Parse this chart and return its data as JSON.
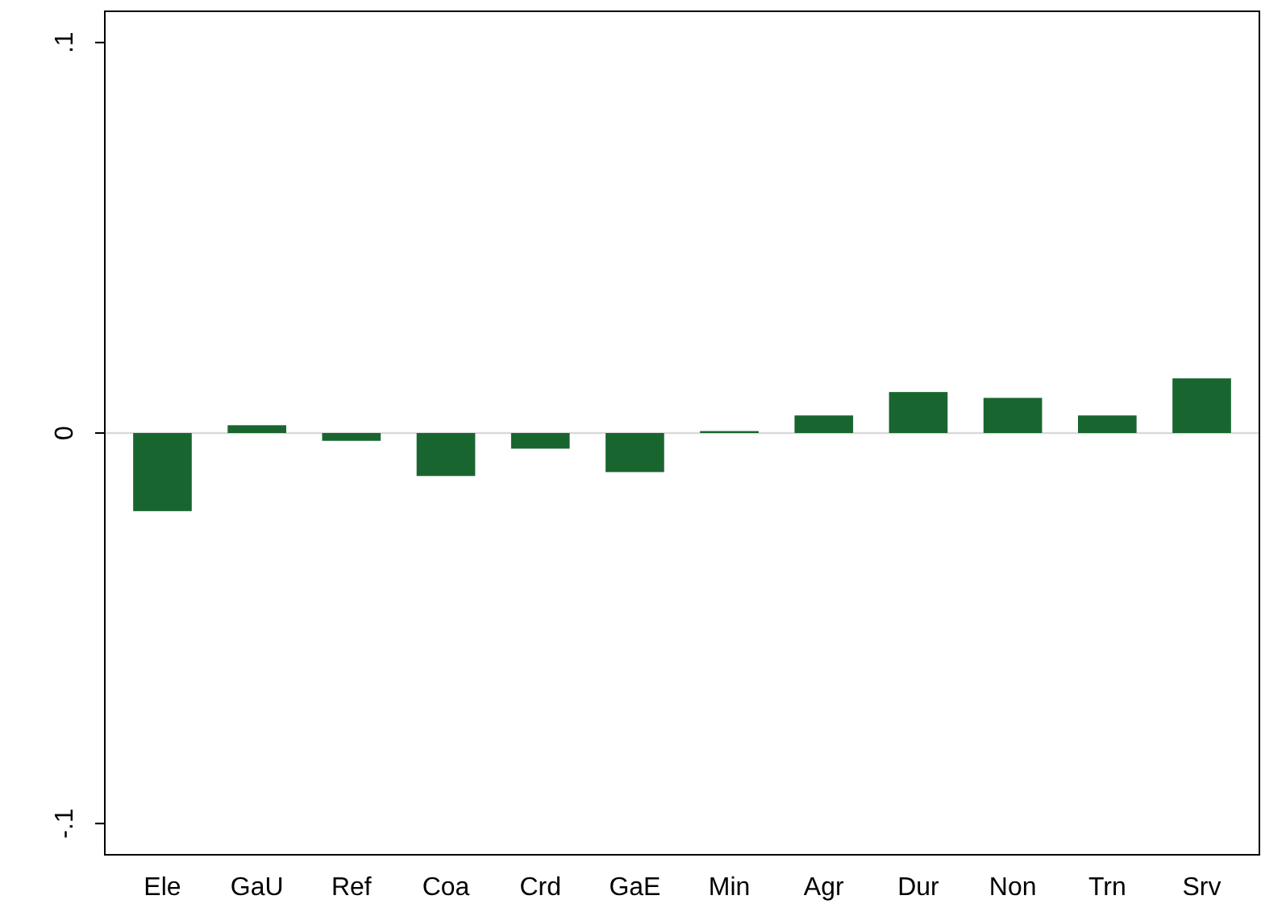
{
  "chart_data": {
    "type": "bar",
    "categories": [
      "Ele",
      "GaU",
      "Ref",
      "Coa",
      "Crd",
      "GaE",
      "Min",
      "Agr",
      "Dur",
      "Non",
      "Trn",
      "Srv"
    ],
    "values": [
      -0.02,
      0.002,
      -0.002,
      -0.011,
      -0.004,
      -0.01,
      0.0005,
      0.0045,
      0.0105,
      0.009,
      0.0045,
      0.014
    ],
    "color": "#196530",
    "ylim": [
      -0.108,
      0.108
    ],
    "yticks": [
      {
        "value": -0.1,
        "label": "-.1"
      },
      {
        "value": 0,
        "label": "0"
      },
      {
        "value": 0.1,
        "label": ".1"
      }
    ],
    "ref_lines": [
      {
        "axis": "y",
        "value": 0,
        "color": "#d9d9d9"
      }
    ]
  }
}
